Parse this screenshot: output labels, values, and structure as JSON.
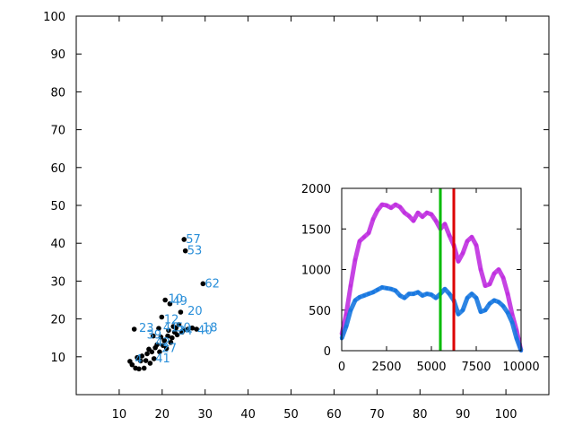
{
  "colors": {
    "frame": "#000000",
    "main_points": "#000000",
    "main_labels": "#2a8fd9",
    "inset_upper": "#c030e0",
    "inset_lower": "#1878e0",
    "marker_green": "#00bb00",
    "marker_red": "#dd0000"
  },
  "chart_data": [
    {
      "type": "scatter",
      "title": "",
      "xlabel": "",
      "ylabel": "",
      "xlim": [
        0,
        110
      ],
      "ylim": [
        0,
        100
      ],
      "x_ticks": [
        "10",
        "20",
        "30",
        "40",
        "50",
        "60",
        "70",
        "80",
        "90",
        "100"
      ],
      "y_ticks": [
        "10",
        "20",
        "30",
        "40",
        "50",
        "60",
        "70",
        "80",
        "90",
        "100"
      ],
      "marker": "filled-dot",
      "points": [
        [
          12.5,
          8.8
        ],
        [
          13.0,
          7.9
        ],
        [
          13.5,
          17.3
        ],
        [
          13.8,
          7.0
        ],
        [
          14.2,
          9.8
        ],
        [
          14.6,
          6.8
        ],
        [
          15.0,
          8.9
        ],
        [
          15.3,
          10.2
        ],
        [
          15.8,
          7.0
        ],
        [
          16.2,
          9.0
        ],
        [
          16.5,
          10.8
        ],
        [
          16.9,
          12.0
        ],
        [
          17.2,
          8.3
        ],
        [
          17.6,
          11.3
        ],
        [
          17.9,
          15.5
        ],
        [
          18.1,
          9.5
        ],
        [
          18.4,
          12.4
        ],
        [
          18.8,
          13.2
        ],
        [
          19.2,
          17.5
        ],
        [
          19.4,
          11.3
        ],
        [
          19.7,
          15.2
        ],
        [
          19.9,
          20.5
        ],
        [
          20.2,
          13.0
        ],
        [
          20.5,
          14.3
        ],
        [
          20.7,
          25.0
        ],
        [
          21.0,
          12.2
        ],
        [
          21.3,
          15.5
        ],
        [
          21.5,
          17.0
        ],
        [
          21.8,
          24.0
        ],
        [
          22.0,
          13.8
        ],
        [
          22.3,
          15.0
        ],
        [
          22.6,
          18.0
        ],
        [
          22.9,
          16.5
        ],
        [
          23.2,
          17.6
        ],
        [
          23.5,
          15.8
        ],
        [
          23.9,
          18.5
        ],
        [
          24.3,
          21.8
        ],
        [
          24.6,
          16.5
        ],
        [
          24.9,
          17.0
        ],
        [
          25.1,
          41.0
        ],
        [
          25.4,
          38.0
        ],
        [
          26.0,
          17.3
        ],
        [
          27.0,
          17.6
        ],
        [
          28.0,
          17.3
        ],
        [
          29.5,
          29.3
        ]
      ],
      "point_labels": [
        {
          "text": "57",
          "x": 25.1,
          "y": 41.0
        },
        {
          "text": "53",
          "x": 25.4,
          "y": 38.0
        },
        {
          "text": "62",
          "x": 29.5,
          "y": 29.3
        },
        {
          "text": "10",
          "x": 21.0,
          "y": 25.2
        },
        {
          "text": "49",
          "x": 22.0,
          "y": 24.6
        },
        {
          "text": "20",
          "x": 25.5,
          "y": 22.0
        },
        {
          "text": "12",
          "x": 20.0,
          "y": 19.8
        },
        {
          "text": "23",
          "x": 14.2,
          "y": 17.5
        },
        {
          "text": "41",
          "x": 19.8,
          "y": 17.6
        },
        {
          "text": "50",
          "x": 22.8,
          "y": 17.6
        },
        {
          "text": "18",
          "x": 29.0,
          "y": 17.6
        },
        {
          "text": "40",
          "x": 27.8,
          "y": 17.0
        },
        {
          "text": "39",
          "x": 16.0,
          "y": 15.8
        },
        {
          "text": "34",
          "x": 23.2,
          "y": 16.8
        },
        {
          "text": "42",
          "x": 18.0,
          "y": 13.8
        },
        {
          "text": "27",
          "x": 19.5,
          "y": 12.2
        },
        {
          "text": "41",
          "x": 18.0,
          "y": 9.5
        },
        {
          "text": "4",
          "x": 13.2,
          "y": 9.2
        }
      ]
    },
    {
      "type": "line",
      "title": "",
      "xlabel": "",
      "ylabel": "",
      "xlim": [
        0,
        10000
      ],
      "ylim": [
        0,
        2000
      ],
      "x_ticks": [
        "0",
        "2500",
        "5000",
        "7500",
        "10000"
      ],
      "y_ticks": [
        "0",
        "500",
        "1000",
        "1500",
        "2000"
      ],
      "vertical_markers": [
        {
          "color": "green",
          "x": 5500
        },
        {
          "color": "red",
          "x": 6250
        }
      ],
      "series": [
        {
          "color": "purple",
          "x": [
            0,
            250,
            500,
            750,
            1000,
            1250,
            1500,
            1750,
            2000,
            2250,
            2500,
            2750,
            3000,
            3250,
            3500,
            3750,
            4000,
            4250,
            4500,
            4750,
            5000,
            5250,
            5500,
            5750,
            6000,
            6250,
            6500,
            6750,
            7000,
            7250,
            7500,
            7750,
            8000,
            8250,
            8500,
            8750,
            9000,
            9250,
            9500,
            9750,
            10000
          ],
          "values": [
            200,
            450,
            800,
            1120,
            1350,
            1400,
            1450,
            1620,
            1730,
            1800,
            1790,
            1760,
            1800,
            1770,
            1700,
            1660,
            1600,
            1700,
            1650,
            1700,
            1680,
            1600,
            1500,
            1560,
            1420,
            1300,
            1100,
            1200,
            1350,
            1400,
            1300,
            1000,
            800,
            820,
            950,
            1000,
            900,
            700,
            450,
            250,
            0
          ]
        },
        {
          "color": "blue",
          "x": [
            0,
            250,
            500,
            750,
            1000,
            1250,
            1500,
            1750,
            2000,
            2250,
            2500,
            2750,
            3000,
            3250,
            3500,
            3750,
            4000,
            4250,
            4500,
            4750,
            5000,
            5250,
            5500,
            5750,
            6000,
            6250,
            6500,
            6750,
            7000,
            7250,
            7500,
            7750,
            8000,
            8250,
            8500,
            8750,
            9000,
            9250,
            9500,
            9750,
            10000
          ],
          "values": [
            150,
            300,
            500,
            620,
            660,
            680,
            700,
            720,
            750,
            780,
            770,
            760,
            740,
            680,
            650,
            700,
            700,
            720,
            680,
            700,
            690,
            650,
            700,
            760,
            700,
            620,
            450,
            500,
            650,
            700,
            650,
            480,
            500,
            580,
            620,
            600,
            550,
            470,
            350,
            150,
            0
          ]
        }
      ]
    }
  ]
}
